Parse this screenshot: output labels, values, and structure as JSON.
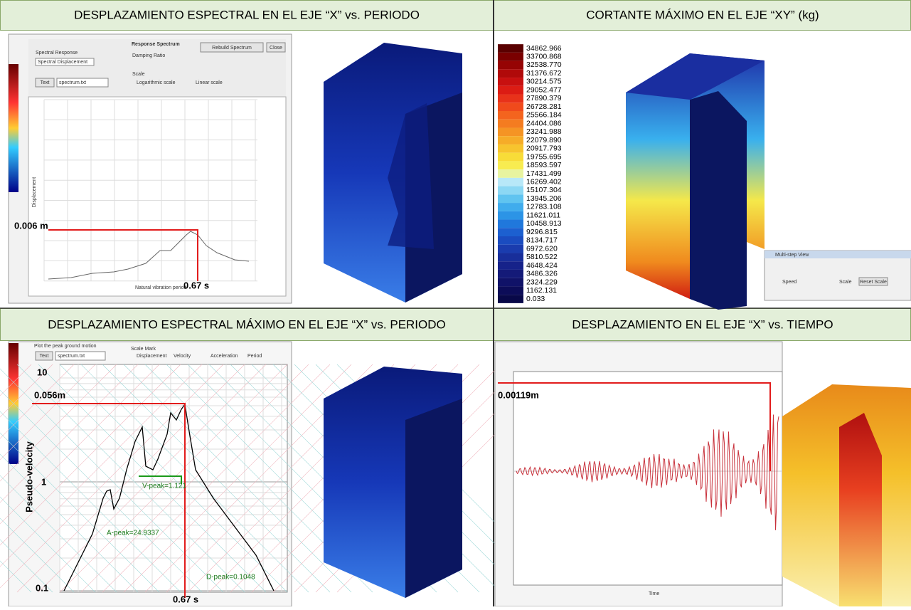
{
  "panels": [
    {
      "title": "DESPLAZAMIENTO ESPECTRAL EN EL EJE “X” vs. PERIODO",
      "window_title": "Response Spectrum",
      "rebuild": "Rebuild Spectrum",
      "close": "Close",
      "response_label": "Spectral Response",
      "response_value": "Spectral Displacement",
      "damping": "Damping Ratio",
      "scale": "Scale",
      "log_scale": "Logarithmic scale",
      "linear_scale": "Linear scale",
      "text_button": "Text",
      "file": "spectrum.txt",
      "x_axis": "Natural vibration period",
      "y_axis": "Displacement",
      "peak_value": "0.006 m",
      "peak_period": "0.67 s"
    },
    {
      "title": "CORTANTE MÁXIMO EN EL EJE “XY” (kg)",
      "legend": [
        "34862.966",
        "33700.868",
        "32538.770",
        "31376.672",
        "30214.575",
        "29052.477",
        "27890.379",
        "26728.281",
        "25566.184",
        "24404.086",
        "23241.988",
        "22079.890",
        "20917.793",
        "19755.695",
        "18593.597",
        "17431.499",
        "16269.402",
        "15107.304",
        "13945.206",
        "12783.108",
        "11621.011",
        "10458.913",
        "9296.815",
        "8134.717",
        "6972.620",
        "5810.522",
        "4648.424",
        "3486.326",
        "2324.229",
        "1162.131",
        "0.033"
      ],
      "window_title": "Multi-step View",
      "speed": "Speed",
      "scale": "Scale",
      "reset": "Reset Scale"
    },
    {
      "title": "DESPLAZAMIENTO ESPECTRAL MÁXIMO EN EL EJE “X” vs. PERIODO",
      "plot_peak": "Plot the peak ground motion",
      "text_button": "Text",
      "file": "spectrum.txt",
      "scale_mark": "Scale Mark",
      "marks": [
        "Displacement",
        "Velocity",
        "Acceleration",
        "Period"
      ],
      "y_axis": "Pseudo-velocity",
      "yticks": [
        "10",
        "1",
        "0.1"
      ],
      "peak_value": "0.056m",
      "peak_period": "0.67 s",
      "v_peak": "V-peak=1.121",
      "a_peak": "A-peak=24.9337",
      "d_peak": "D-peak=0.1048"
    },
    {
      "title": "DESPLAZAMIENTO EN EL EJE “X” vs. TIEMPO",
      "x_axis": "Time",
      "peak_value": "0.00119m"
    }
  ]
}
